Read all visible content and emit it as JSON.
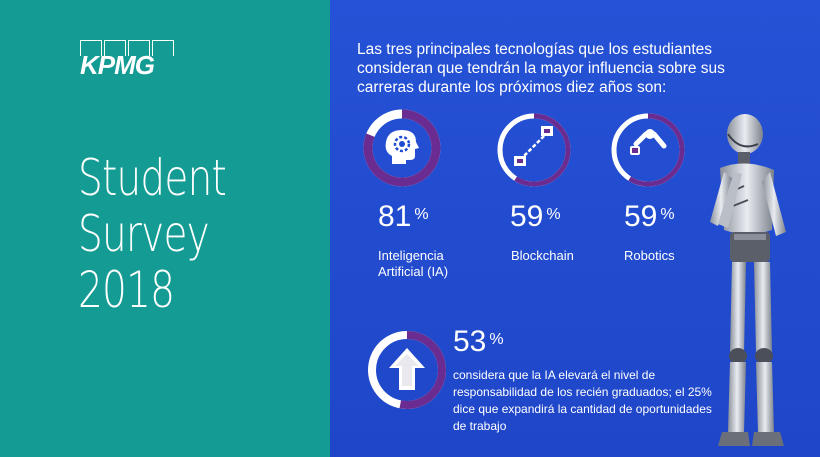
{
  "brand": {
    "logo_text": "KPMG"
  },
  "title": {
    "line1": "Student",
    "line2": "Survey",
    "line3": "2018"
  },
  "intro": "Las tres principales tecnologías que los estudiantes consideran que tendrán la mayor influencia sobre sus carreras durante los próximos diez años son:",
  "stats": [
    {
      "value": "81",
      "unit": "%",
      "label_line1": "Inteligencia",
      "label_line2": "Artificial (IA)",
      "percent": 81,
      "icon": "ai-head-icon"
    },
    {
      "value": "59",
      "unit": "%",
      "label_line1": "Blockchain",
      "label_line2": "",
      "percent": 59,
      "icon": "blockchain-icon"
    },
    {
      "value": "59",
      "unit": "%",
      "label_line1": "Robotics",
      "label_line2": "",
      "percent": 59,
      "icon": "robot-arm-icon"
    }
  ],
  "highlight": {
    "value": "53",
    "unit": "%",
    "percent": 53,
    "icon": "arrow-up-icon",
    "text": "considera que la IA elevará el nivel de responsabilidad de los recién graduados; el 25% dice que expandirá la cantidad de oportunidades de trabajo"
  },
  "colors": {
    "teal": "#149c94",
    "blue": "#1f4bd3",
    "purple": "#6b2c91",
    "white": "#ffffff"
  }
}
